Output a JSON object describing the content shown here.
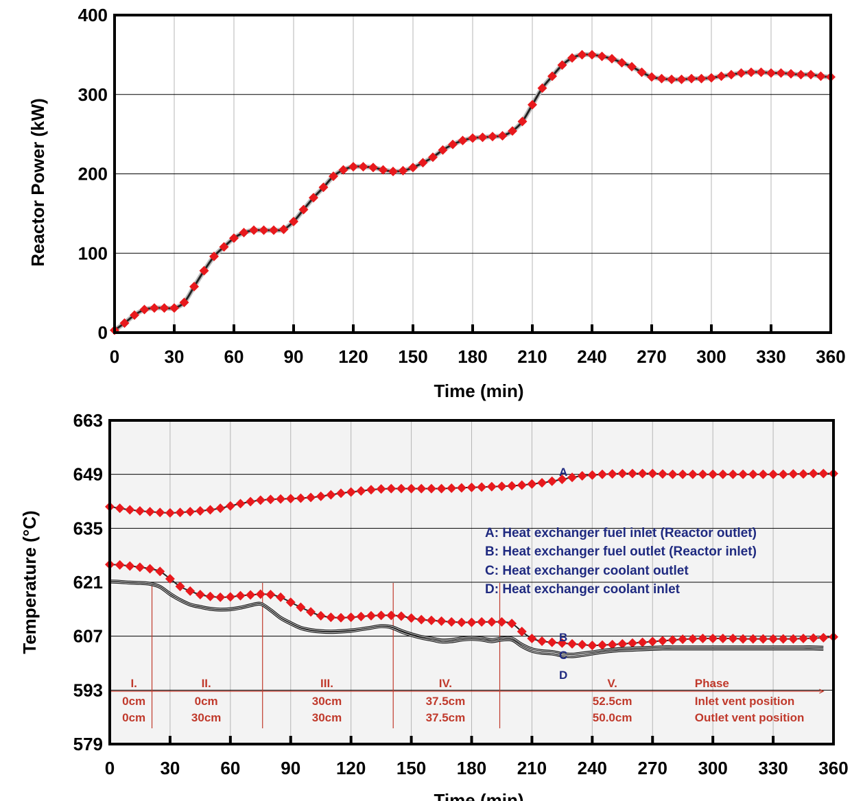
{
  "chart_data": [
    {
      "type": "line",
      "title": "",
      "xlabel": "Time (min)",
      "ylabel": "Reactor Power (kW)",
      "xlim": [
        0,
        360
      ],
      "ylim": [
        0,
        400
      ],
      "xticks": [
        "0",
        "30",
        "60",
        "90",
        "120",
        "150",
        "180",
        "210",
        "240",
        "270",
        "300",
        "330",
        "360"
      ],
      "yticks": [
        "0",
        "100",
        "200",
        "300",
        "400"
      ],
      "grid": true,
      "marker": "diamond",
      "marker_color": "#e8191d",
      "line_color": "#222222",
      "series": [
        {
          "x": [
            0,
            5,
            10,
            15,
            20,
            25,
            30,
            35,
            40,
            45,
            50,
            55,
            60,
            65,
            70,
            75,
            80,
            85,
            90,
            95,
            100,
            105,
            110,
            115,
            120,
            125,
            130,
            135,
            140,
            145,
            150,
            155,
            160,
            165,
            170,
            175,
            180,
            185,
            190,
            195,
            200,
            205,
            210,
            215,
            220,
            225,
            230,
            235,
            240,
            245,
            250,
            255,
            260,
            265,
            270,
            275,
            280,
            285,
            290,
            295,
            300,
            305,
            310,
            315,
            320,
            325,
            330,
            335,
            340,
            345,
            350,
            355,
            360
          ],
          "y": [
            3,
            12,
            22,
            29,
            31,
            31,
            31,
            38,
            58,
            78,
            96,
            108,
            119,
            126,
            129,
            129,
            129,
            130,
            140,
            155,
            170,
            183,
            197,
            205,
            209,
            209,
            208,
            205,
            203,
            204,
            208,
            214,
            221,
            230,
            237,
            242,
            245,
            246,
            247,
            248,
            254,
            266,
            287,
            308,
            323,
            337,
            346,
            350,
            350,
            348,
            345,
            340,
            335,
            328,
            322,
            320,
            319,
            319,
            320,
            320,
            321,
            323,
            325,
            327,
            328,
            328,
            327,
            327,
            326,
            325,
            325,
            323,
            322
          ]
        }
      ]
    },
    {
      "type": "line",
      "title": "",
      "xlabel": "Time (min)",
      "ylabel": "Temperature (°C)",
      "xlim": [
        0,
        360
      ],
      "ylim": [
        579,
        663
      ],
      "xticks": [
        "0",
        "30",
        "60",
        "90",
        "120",
        "150",
        "180",
        "210",
        "240",
        "270",
        "300",
        "330",
        "360"
      ],
      "yticks": [
        "579",
        "593",
        "607",
        "621",
        "635",
        "649",
        "663"
      ],
      "grid": true,
      "legend": {
        "placement": "center-right",
        "entries": [
          "A: Heat exchanger fuel inlet (Reactor outlet)",
          "B: Heat exchanger fuel outlet (Reactor inlet)",
          "C: Heat exchanger coolant outlet",
          "D: Heat exchanger coolant inlet"
        ]
      },
      "curve_labels": [
        "A",
        "B",
        "C",
        "D"
      ],
      "series": [
        {
          "name": "A",
          "marker": "diamond",
          "x": [
            0,
            5,
            10,
            15,
            20,
            25,
            30,
            35,
            40,
            45,
            50,
            55,
            60,
            65,
            70,
            75,
            80,
            85,
            90,
            95,
            100,
            105,
            110,
            115,
            120,
            125,
            130,
            135,
            140,
            145,
            150,
            155,
            160,
            165,
            170,
            175,
            180,
            185,
            190,
            195,
            200,
            205,
            210,
            215,
            220,
            225,
            230,
            235,
            240,
            245,
            250,
            255,
            260,
            265,
            270,
            275,
            280,
            285,
            290,
            295,
            300,
            305,
            310,
            315,
            320,
            325,
            330,
            335,
            340,
            345,
            350,
            355,
            360
          ],
          "y": [
            640.6,
            640.2,
            639.8,
            639.5,
            639.3,
            639.1,
            639.0,
            639.1,
            639.3,
            639.5,
            639.8,
            640.2,
            640.8,
            641.4,
            641.9,
            642.3,
            642.5,
            642.6,
            642.7,
            642.8,
            643.0,
            643.3,
            643.7,
            644.1,
            644.4,
            644.7,
            645.0,
            645.2,
            645.3,
            645.3,
            645.3,
            645.3,
            645.3,
            645.3,
            645.4,
            645.5,
            645.6,
            645.7,
            645.8,
            645.9,
            646.0,
            646.2,
            646.5,
            646.8,
            647.2,
            647.7,
            648.2,
            648.6,
            648.8,
            649.0,
            649.1,
            649.2,
            649.2,
            649.2,
            649.2,
            649.1,
            649.0,
            649.0,
            649.0,
            649.0,
            649.0,
            649.0,
            649.0,
            649.0,
            649.0,
            649.0,
            649.0,
            649.0,
            649.1,
            649.1,
            649.2,
            649.2,
            649.2
          ]
        },
        {
          "name": "B",
          "marker": "diamond",
          "x": [
            0,
            5,
            10,
            15,
            20,
            25,
            30,
            35,
            40,
            45,
            50,
            55,
            60,
            65,
            70,
            75,
            80,
            85,
            90,
            95,
            100,
            105,
            110,
            115,
            120,
            125,
            130,
            135,
            140,
            145,
            150,
            155,
            160,
            165,
            170,
            175,
            180,
            185,
            190,
            195,
            200,
            205,
            210,
            215,
            220,
            225,
            230,
            235,
            240,
            245,
            250,
            255,
            260,
            265,
            270,
            275,
            280,
            285,
            290,
            295,
            300,
            305,
            310,
            315,
            320,
            325,
            330,
            335,
            340,
            345,
            350,
            355,
            360
          ],
          "y": [
            625.6,
            625.5,
            625.2,
            624.9,
            624.5,
            623.8,
            621.9,
            619.9,
            618.7,
            617.8,
            617.3,
            617.1,
            617.2,
            617.5,
            617.7,
            617.9,
            617.8,
            617.1,
            615.8,
            614.5,
            613.3,
            612.3,
            611.9,
            611.8,
            611.9,
            612.1,
            612.3,
            612.4,
            612.4,
            612.2,
            611.7,
            611.3,
            611.1,
            610.9,
            610.7,
            610.6,
            610.6,
            610.7,
            610.7,
            610.7,
            610.3,
            608.2,
            606.4,
            605.7,
            605.4,
            605.2,
            605.0,
            604.8,
            604.6,
            604.7,
            604.8,
            605.0,
            605.2,
            605.4,
            605.6,
            605.8,
            606.0,
            606.2,
            606.3,
            606.4,
            606.4,
            606.4,
            606.4,
            606.3,
            606.3,
            606.3,
            606.3,
            606.3,
            606.3,
            606.4,
            606.5,
            606.6,
            606.8
          ]
        },
        {
          "name": "C",
          "marker": "none",
          "x": [
            0,
            5,
            10,
            15,
            20,
            25,
            30,
            35,
            40,
            45,
            50,
            55,
            60,
            65,
            70,
            75,
            80,
            85,
            90,
            95,
            100,
            105,
            110,
            115,
            120,
            125,
            130,
            135,
            140,
            145,
            150,
            155,
            160,
            165,
            170,
            175,
            180,
            185,
            190,
            195,
            200,
            205,
            210,
            215,
            220,
            225,
            230,
            235,
            240,
            245,
            250,
            255,
            260,
            265,
            270,
            275,
            280,
            285,
            290,
            295,
            300,
            305,
            310,
            315,
            320,
            325,
            330,
            335,
            340,
            345,
            350,
            355
          ],
          "y": [
            621.4,
            621.3,
            621.1,
            621.0,
            620.8,
            620.0,
            618.2,
            616.6,
            615.4,
            614.8,
            614.3,
            614.1,
            614.2,
            614.6,
            615.2,
            615.6,
            614.0,
            612.0,
            610.6,
            609.4,
            608.8,
            608.5,
            608.4,
            608.5,
            608.7,
            609.0,
            609.4,
            609.8,
            609.6,
            608.6,
            607.7,
            607.0,
            606.6,
            606.1,
            606.2,
            606.6,
            606.8,
            606.6,
            606.2,
            606.6,
            606.6,
            605.0,
            603.8,
            603.3,
            603.1,
            602.6,
            602.4,
            602.7,
            603.0,
            603.4,
            603.7,
            603.9,
            604.0,
            604.1,
            604.2,
            604.3,
            604.3,
            604.3,
            604.3,
            604.3,
            604.3,
            604.3,
            604.3,
            604.3,
            604.3,
            604.3,
            604.3,
            604.3,
            604.3,
            604.3,
            604.3,
            604.2
          ]
        },
        {
          "name": "D",
          "marker": "none",
          "x": [
            0,
            5,
            10,
            15,
            20,
            25,
            30,
            35,
            40,
            45,
            50,
            55,
            60,
            65,
            70,
            75,
            80,
            85,
            90,
            95,
            100,
            105,
            110,
            115,
            120,
            125,
            130,
            135,
            140,
            145,
            150,
            155,
            160,
            165,
            170,
            175,
            180,
            185,
            190,
            195,
            200,
            205,
            210,
            215,
            220,
            225,
            230,
            235,
            240,
            245,
            250,
            255,
            260,
            265,
            270,
            275,
            280,
            285,
            290,
            295,
            300,
            305,
            310,
            315,
            320,
            325,
            330,
            335,
            340,
            345,
            350,
            355
          ],
          "y": [
            621.0,
            620.9,
            620.7,
            620.6,
            620.4,
            619.6,
            617.7,
            616.2,
            615.0,
            614.4,
            613.9,
            613.7,
            613.8,
            614.2,
            614.8,
            615.2,
            613.5,
            611.5,
            610.1,
            608.9,
            608.3,
            608.0,
            607.9,
            608.0,
            608.2,
            608.6,
            609.0,
            609.4,
            609.1,
            608.0,
            607.1,
            606.4,
            605.9,
            605.4,
            605.5,
            605.9,
            606.1,
            605.9,
            605.5,
            605.9,
            605.9,
            604.2,
            603.0,
            602.5,
            602.3,
            601.8,
            601.6,
            601.9,
            602.3,
            602.7,
            603.0,
            603.2,
            603.3,
            603.4,
            603.5,
            603.6,
            603.6,
            603.6,
            603.6,
            603.6,
            603.6,
            603.6,
            603.6,
            603.6,
            603.6,
            603.6,
            603.6,
            603.6,
            603.6,
            603.6,
            603.6,
            603.5
          ]
        }
      ],
      "phases": {
        "row_labels": [
          "Phase",
          "Inlet vent position",
          "Outlet vent position"
        ],
        "boundaries": [
          21,
          76,
          141,
          194
        ],
        "items": [
          {
            "name": "I.",
            "inlet": "0cm",
            "outlet": "0cm"
          },
          {
            "name": "II.",
            "inlet": "0cm",
            "outlet": "30cm"
          },
          {
            "name": "III.",
            "inlet": "30cm",
            "outlet": "30cm"
          },
          {
            "name": "IV.",
            "inlet": "37.5cm",
            "outlet": "37.5cm"
          },
          {
            "name": "V.",
            "inlet": "52.5cm",
            "outlet": "50.0cm"
          }
        ]
      }
    }
  ]
}
